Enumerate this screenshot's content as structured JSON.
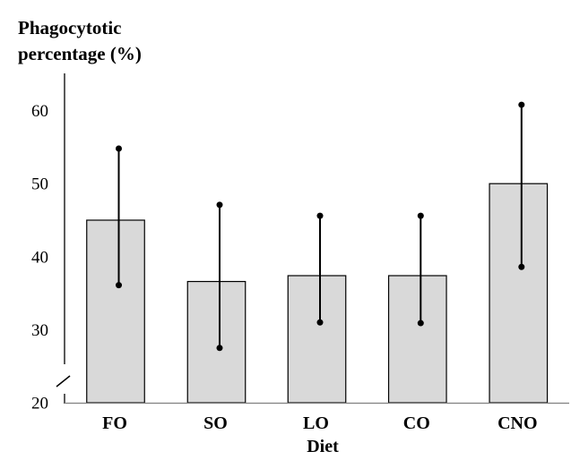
{
  "chart_data": {
    "type": "bar",
    "title": "",
    "ylabel_lines": [
      "Phagocytotic",
      "percentage (%)"
    ],
    "xlabel": "Diet",
    "categories": [
      "FO",
      "SO",
      "LO",
      "CO",
      "CNO"
    ],
    "values": [
      45.0,
      36.6,
      37.4,
      37.4,
      50.0
    ],
    "error_upper": [
      54.8,
      47.1,
      45.6,
      45.6,
      60.8
    ],
    "error_lower": [
      36.1,
      27.5,
      31.0,
      30.9,
      38.6
    ],
    "yticks": [
      "20",
      "30",
      "40",
      "50",
      "60"
    ],
    "ytick_values": [
      20,
      30,
      40,
      50,
      60
    ],
    "ylim": [
      20,
      64
    ],
    "axis_break": true,
    "grid": false,
    "legend": "none",
    "colors": {
      "bar_fill": "#d9d9d9",
      "bar_stroke": "#000000",
      "error": "#000000",
      "x_axis": "#808080",
      "y_axis": "#000000"
    }
  }
}
